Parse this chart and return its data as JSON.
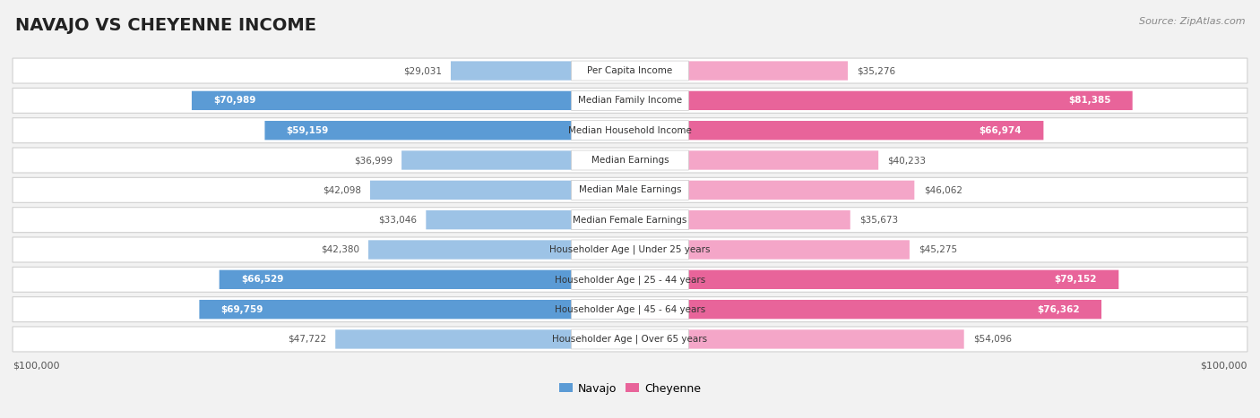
{
  "title": "NAVAJO VS CHEYENNE INCOME",
  "source": "Source: ZipAtlas.com",
  "categories": [
    "Per Capita Income",
    "Median Family Income",
    "Median Household Income",
    "Median Earnings",
    "Median Male Earnings",
    "Median Female Earnings",
    "Householder Age | Under 25 years",
    "Householder Age | 25 - 44 years",
    "Householder Age | 45 - 64 years",
    "Householder Age | Over 65 years"
  ],
  "navajo_values": [
    29031,
    70989,
    59159,
    36999,
    42098,
    33046,
    42380,
    66529,
    69759,
    47722
  ],
  "cheyenne_values": [
    35276,
    81385,
    66974,
    40233,
    46062,
    35673,
    45275,
    79152,
    76362,
    54096
  ],
  "navajo_color_full": "#5b9bd5",
  "navajo_color_light": "#9dc3e6",
  "cheyenne_color_full": "#e8649a",
  "cheyenne_color_light": "#f4a6c8",
  "bg_color": "#f2f2f2",
  "row_bg_color": "#ffffff",
  "row_border_color": "#d0d0d0",
  "max_value": 100000,
  "title_fontsize": 14,
  "label_fontsize": 7.5,
  "value_fontsize": 7.5,
  "legend_fontsize": 9,
  "source_fontsize": 8,
  "full_color_threshold": 55000,
  "bottom_label_value_color": "#555555",
  "white_text_color": "#ffffff"
}
